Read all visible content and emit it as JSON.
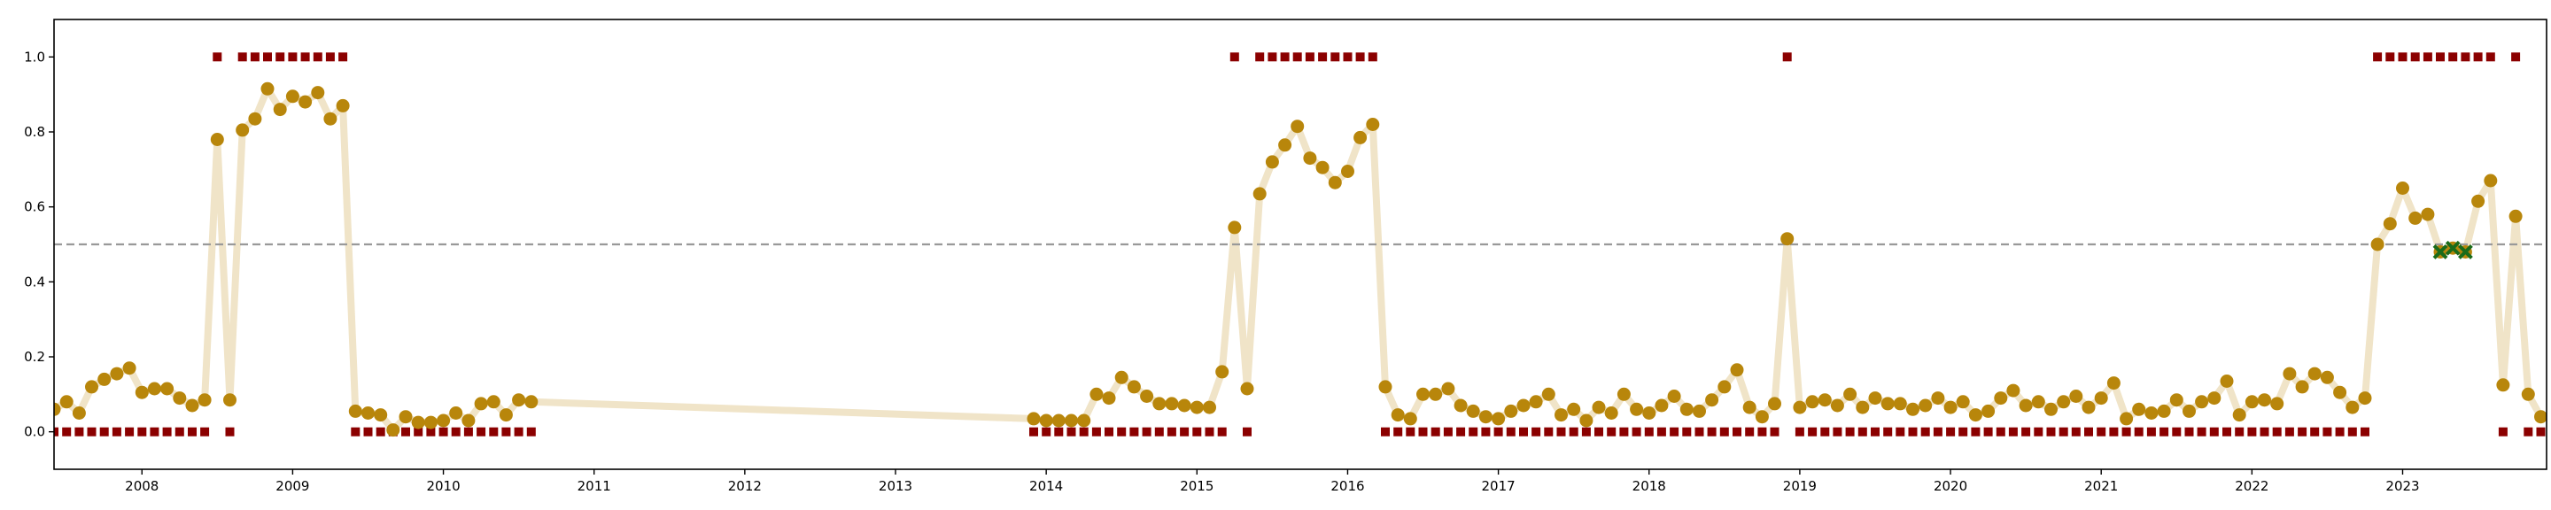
{
  "chart_data": {
    "type": "scatter",
    "title": "",
    "xlabel": "",
    "ylabel": "",
    "x_tick_labels": [
      "2008",
      "2009",
      "2010",
      "2011",
      "2012",
      "2013",
      "2014",
      "2015",
      "2016",
      "2017",
      "2018",
      "2019",
      "2020",
      "2021",
      "2022",
      "2023"
    ],
    "y_tick_labels": [
      "0.0",
      "0.2",
      "0.4",
      "0.6",
      "0.8",
      "1.0"
    ],
    "y_ticks": [
      0.0,
      0.2,
      0.4,
      0.6,
      0.8,
      1.0
    ],
    "xlim": [
      "2007-06-01",
      "2023-12-15"
    ],
    "ylim": [
      -0.1,
      1.1
    ],
    "grid": false,
    "legend": false,
    "threshold": 0.5,
    "colors": {
      "line": "#f0e4c8",
      "prob_marker": "#b8860b",
      "label_marker": "#8b0000",
      "flag_marker": "#1a6b1a",
      "threshold": "#999999"
    },
    "series": [
      {
        "role": "probability",
        "style": "line+circle",
        "x": [
          "2007-06",
          "2007-07",
          "2007-08",
          "2007-09",
          "2007-10",
          "2007-11",
          "2007-12",
          "2008-01",
          "2008-02",
          "2008-03",
          "2008-04",
          "2008-05",
          "2008-06",
          "2008-07",
          "2008-08",
          "2008-09",
          "2008-10",
          "2008-11",
          "2008-12",
          "2009-01",
          "2009-02",
          "2009-03",
          "2009-04",
          "2009-05",
          "2009-06",
          "2009-07",
          "2009-08",
          "2009-09",
          "2009-10",
          "2009-11",
          "2009-12",
          "2010-01",
          "2010-02",
          "2010-03",
          "2010-04",
          "2010-05",
          "2010-06",
          "2010-07",
          "2010-08",
          "2013-12",
          "2014-01",
          "2014-02",
          "2014-03",
          "2014-04",
          "2014-05",
          "2014-06",
          "2014-07",
          "2014-08",
          "2014-09",
          "2014-10",
          "2014-11",
          "2014-12",
          "2015-01",
          "2015-02",
          "2015-03",
          "2015-04",
          "2015-05",
          "2015-06",
          "2015-07",
          "2015-08",
          "2015-09",
          "2015-10",
          "2015-11",
          "2015-12",
          "2016-01",
          "2016-02",
          "2016-03",
          "2016-04",
          "2016-05",
          "2016-06",
          "2016-07",
          "2016-08",
          "2016-09",
          "2016-10",
          "2016-11",
          "2016-12",
          "2017-01",
          "2017-02",
          "2017-03",
          "2017-04",
          "2017-05",
          "2017-06",
          "2017-07",
          "2017-08",
          "2017-09",
          "2017-10",
          "2017-11",
          "2017-12",
          "2018-01",
          "2018-02",
          "2018-03",
          "2018-04",
          "2018-05",
          "2018-06",
          "2018-07",
          "2018-08",
          "2018-09",
          "2018-10",
          "2018-11",
          "2018-12",
          "2019-01",
          "2019-02",
          "2019-03",
          "2019-04",
          "2019-05",
          "2019-06",
          "2019-07",
          "2019-08",
          "2019-09",
          "2019-10",
          "2019-11",
          "2019-12",
          "2020-01",
          "2020-02",
          "2020-03",
          "2020-04",
          "2020-05",
          "2020-06",
          "2020-07",
          "2020-08",
          "2020-09",
          "2020-10",
          "2020-11",
          "2020-12",
          "2021-01",
          "2021-02",
          "2021-03",
          "2021-04",
          "2021-05",
          "2021-06",
          "2021-07",
          "2021-08",
          "2021-09",
          "2021-10",
          "2021-11",
          "2021-12",
          "2022-01",
          "2022-02",
          "2022-03",
          "2022-04",
          "2022-05",
          "2022-06",
          "2022-07",
          "2022-08",
          "2022-09",
          "2022-10",
          "2022-11",
          "2022-12",
          "2023-01",
          "2023-02",
          "2023-03",
          "2023-04",
          "2023-05",
          "2023-06",
          "2023-07",
          "2023-08",
          "2023-09",
          "2023-10",
          "2023-11",
          "2023-12"
        ],
        "y": [
          0.06,
          0.08,
          0.05,
          0.12,
          0.14,
          0.155,
          0.17,
          0.105,
          0.115,
          0.115,
          0.09,
          0.07,
          0.085,
          0.78,
          0.085,
          0.805,
          0.835,
          0.915,
          0.86,
          0.895,
          0.88,
          0.905,
          0.835,
          0.87,
          0.055,
          0.05,
          0.045,
          0.005,
          0.04,
          0.025,
          0.025,
          0.03,
          0.05,
          0.03,
          0.075,
          0.08,
          0.045,
          0.085,
          0.08,
          0.035,
          0.03,
          0.03,
          0.03,
          0.03,
          0.1,
          0.09,
          0.145,
          0.12,
          0.095,
          0.075,
          0.075,
          0.07,
          0.065,
          0.065,
          0.16,
          0.545,
          0.115,
          0.635,
          0.72,
          0.765,
          0.815,
          0.73,
          0.705,
          0.665,
          0.695,
          0.785,
          0.82,
          0.12,
          0.045,
          0.035,
          0.1,
          0.1,
          0.115,
          0.07,
          0.055,
          0.04,
          0.035,
          0.055,
          0.07,
          0.08,
          0.1,
          0.045,
          0.06,
          0.03,
          0.065,
          0.05,
          0.1,
          0.06,
          0.05,
          0.07,
          0.095,
          0.06,
          0.055,
          0.085,
          0.12,
          0.165,
          0.065,
          0.04,
          0.075,
          0.515,
          0.065,
          0.08,
          0.085,
          0.07,
          0.1,
          0.065,
          0.09,
          0.075,
          0.075,
          0.06,
          0.07,
          0.09,
          0.065,
          0.08,
          0.045,
          0.055,
          0.09,
          0.11,
          0.07,
          0.08,
          0.06,
          0.08,
          0.095,
          0.065,
          0.09,
          0.13,
          0.035,
          0.06,
          0.05,
          0.055,
          0.085,
          0.055,
          0.08,
          0.09,
          0.135,
          0.045,
          0.08,
          0.085,
          0.075,
          0.155,
          0.12,
          0.155,
          0.145,
          0.105,
          0.065,
          0.09,
          0.5,
          0.555,
          0.65,
          0.57,
          0.58,
          0.48,
          0.49,
          0.48,
          0.615,
          0.67,
          0.125,
          0.575,
          0.1,
          0.04
        ]
      },
      {
        "role": "label",
        "style": "square",
        "x": [
          "2007-06",
          "2007-07",
          "2007-08",
          "2007-09",
          "2007-10",
          "2007-11",
          "2007-12",
          "2008-01",
          "2008-02",
          "2008-03",
          "2008-04",
          "2008-05",
          "2008-06",
          "2008-07",
          "2008-08",
          "2008-09",
          "2008-10",
          "2008-11",
          "2008-12",
          "2009-01",
          "2009-02",
          "2009-03",
          "2009-04",
          "2009-05",
          "2009-06",
          "2009-07",
          "2009-08",
          "2009-09",
          "2009-10",
          "2009-11",
          "2009-12",
          "2010-01",
          "2010-02",
          "2010-03",
          "2010-04",
          "2010-05",
          "2010-06",
          "2010-07",
          "2010-08",
          "2013-12",
          "2014-01",
          "2014-02",
          "2014-03",
          "2014-04",
          "2014-05",
          "2014-06",
          "2014-07",
          "2014-08",
          "2014-09",
          "2014-10",
          "2014-11",
          "2014-12",
          "2015-01",
          "2015-02",
          "2015-03",
          "2015-04",
          "2015-05",
          "2015-06",
          "2015-07",
          "2015-08",
          "2015-09",
          "2015-10",
          "2015-11",
          "2015-12",
          "2016-01",
          "2016-02",
          "2016-03",
          "2016-04",
          "2016-05",
          "2016-06",
          "2016-07",
          "2016-08",
          "2016-09",
          "2016-10",
          "2016-11",
          "2016-12",
          "2017-01",
          "2017-02",
          "2017-03",
          "2017-04",
          "2017-05",
          "2017-06",
          "2017-07",
          "2017-08",
          "2017-09",
          "2017-10",
          "2017-11",
          "2017-12",
          "2018-01",
          "2018-02",
          "2018-03",
          "2018-04",
          "2018-05",
          "2018-06",
          "2018-07",
          "2018-08",
          "2018-09",
          "2018-10",
          "2018-11",
          "2018-12",
          "2019-01",
          "2019-02",
          "2019-03",
          "2019-04",
          "2019-05",
          "2019-06",
          "2019-07",
          "2019-08",
          "2019-09",
          "2019-10",
          "2019-11",
          "2019-12",
          "2020-01",
          "2020-02",
          "2020-03",
          "2020-04",
          "2020-05",
          "2020-06",
          "2020-07",
          "2020-08",
          "2020-09",
          "2020-10",
          "2020-11",
          "2020-12",
          "2021-01",
          "2021-02",
          "2021-03",
          "2021-04",
          "2021-05",
          "2021-06",
          "2021-07",
          "2021-08",
          "2021-09",
          "2021-10",
          "2021-11",
          "2021-12",
          "2022-01",
          "2022-02",
          "2022-03",
          "2022-04",
          "2022-05",
          "2022-06",
          "2022-07",
          "2022-08",
          "2022-09",
          "2022-10",
          "2022-11",
          "2022-12",
          "2023-01",
          "2023-02",
          "2023-03",
          "2023-04",
          "2023-05",
          "2023-06",
          "2023-07",
          "2023-08",
          "2023-09",
          "2023-10",
          "2023-11",
          "2023-12"
        ],
        "y": [
          0,
          0,
          0,
          0,
          0,
          0,
          0,
          0,
          0,
          0,
          0,
          0,
          0,
          1,
          0,
          1,
          1,
          1,
          1,
          1,
          1,
          1,
          1,
          1,
          0,
          0,
          0,
          0,
          0,
          0,
          0,
          0,
          0,
          0,
          0,
          0,
          0,
          0,
          0,
          0,
          0,
          0,
          0,
          0,
          0,
          0,
          0,
          0,
          0,
          0,
          0,
          0,
          0,
          0,
          0,
          1,
          0,
          1,
          1,
          1,
          1,
          1,
          1,
          1,
          1,
          1,
          1,
          0,
          0,
          0,
          0,
          0,
          0,
          0,
          0,
          0,
          0,
          0,
          0,
          0,
          0,
          0,
          0,
          0,
          0,
          0,
          0,
          0,
          0,
          0,
          0,
          0,
          0,
          0,
          0,
          0,
          0,
          0,
          0,
          1,
          0,
          0,
          0,
          0,
          0,
          0,
          0,
          0,
          0,
          0,
          0,
          0,
          0,
          0,
          0,
          0,
          0,
          0,
          0,
          0,
          0,
          0,
          0,
          0,
          0,
          0,
          0,
          0,
          0,
          0,
          0,
          0,
          0,
          0,
          0,
          0,
          0,
          0,
          0,
          0,
          0,
          0,
          0,
          0,
          0,
          0,
          1,
          1,
          1,
          1,
          1,
          1,
          1,
          1,
          1,
          1,
          0,
          1,
          0,
          0
        ]
      },
      {
        "role": "flagged",
        "style": "x",
        "x": [
          "2023-04",
          "2023-05",
          "2023-06"
        ],
        "y": [
          0.48,
          0.49,
          0.48
        ]
      }
    ]
  }
}
